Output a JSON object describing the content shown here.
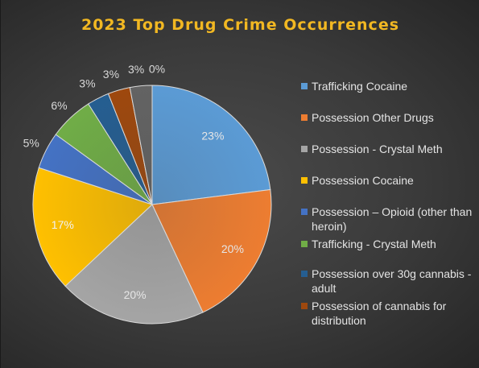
{
  "chart_data": {
    "type": "pie",
    "title": "2023 Top Drug Crime Occurrences",
    "slices": [
      {
        "label": "Trafficking Cocaine",
        "value": 23,
        "display": "23%",
        "color": "#5b9bd5"
      },
      {
        "label": "Possession Other Drugs",
        "value": 20,
        "display": "20%",
        "color": "#ed7d31"
      },
      {
        "label": "Possession - Crystal Meth",
        "value": 20,
        "display": "20%",
        "color": "#a5a5a5"
      },
      {
        "label": "Possession Cocaine",
        "value": 17,
        "display": "17%",
        "color": "#ffc000"
      },
      {
        "label": "Possession – Opioid (other than heroin)",
        "value": 5,
        "display": "5%",
        "color": "#4472c4"
      },
      {
        "label": "Trafficking - Crystal Meth",
        "value": 6,
        "display": "6%",
        "color": "#70ad47"
      },
      {
        "label": "Possession over 30g cannabis - adult",
        "value": 3,
        "display": "3%",
        "color": "#255e91"
      },
      {
        "label": "Possession of cannabis for distribution",
        "value": 3,
        "display": "3%",
        "color": "#9e480e"
      },
      {
        "label": "",
        "value": 3,
        "display": "3%",
        "color": "#636363"
      },
      {
        "label": "",
        "value": 0,
        "display": "0%",
        "color": "#997300"
      }
    ],
    "legend_position": "right"
  }
}
